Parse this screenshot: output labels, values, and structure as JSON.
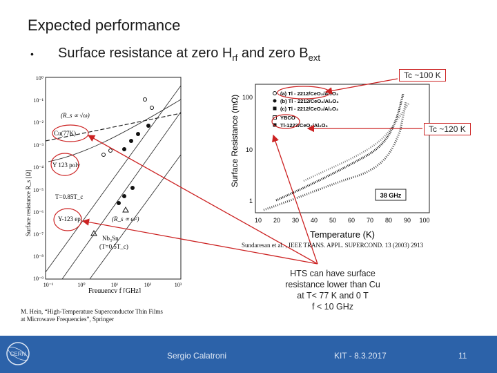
{
  "slide": {
    "title": "Expected performance",
    "bullet": "•",
    "subtitle_main": "Surface resistance at zero H",
    "subtitle_sub1": "rf",
    "subtitle_mid": " and zero B",
    "subtitle_sub2": "ext"
  },
  "left_figure": {
    "ylabel": "Surface resistance R_s [Ω]",
    "xlabel": "Frequency f [GHz]",
    "y_ticks": [
      "10⁰",
      "10⁻¹",
      "10⁻²",
      "10⁻³",
      "10⁻⁴",
      "10⁻⁵",
      "10⁻⁶",
      "10⁻⁷",
      "10⁻⁸",
      "10⁻⁹"
    ],
    "x_ticks": [
      "10⁻¹",
      "10⁰",
      "10¹",
      "10²",
      "10³"
    ],
    "labels": {
      "rs_omega_half": "(R_s ∝ √ω)",
      "cu": "Cu(77K)",
      "ybco_poly": "Y 123 poly",
      "t085": "T=0.85T_c",
      "ybco_epi": "Y-123 epi",
      "rs_omega_sq": "(R_s ∝ ω²)",
      "nb3sn": "Nb₃Sn",
      "nb3sn_t": "(T=0.5T_c)"
    }
  },
  "right_figure": {
    "ylabel": "Surface Resistance (mΩ)",
    "xlabel": "Temperature (K)",
    "y_ticks": [
      "100",
      "10",
      "1"
    ],
    "x_ticks": [
      "10",
      "20",
      "30",
      "40",
      "50",
      "60",
      "70",
      "80",
      "90",
      "100"
    ],
    "legend": [
      "(a) Tl - 2212/CeO₂/Al₂O₃",
      "(b) Tl - 2212/CeO₂/Al₂O₃",
      "(c) Tl - 2212/CeO₂/Al₂O₃",
      "YBCO",
      "Tl-1223/CeO₂/Al₂O₃"
    ],
    "freq_label": "38 GHz"
  },
  "callouts": {
    "tc100": "Tc ~100 K",
    "tc120": "Tc ~120 K"
  },
  "citations": {
    "sundaresan": "Sundaresan et al. , IEEE TRANS. APPL. SUPERCOND. 13 (2003) 2913",
    "hein_line1": "M. Hein, “High-Temperature Superconductor Thin Films",
    "hein_line2": "at Microwave Frequencies”, Springer"
  },
  "note": {
    "line1": "HTS can have surface",
    "line2": "resistance lower than Cu",
    "line3": "at T< 77 K and 0 T",
    "line4": "f < 10 GHz"
  },
  "footer": {
    "author": "Sergio Calatroni",
    "event": "KIT - 8.3.2017",
    "page": "11",
    "logo_text": "CERN"
  },
  "colors": {
    "accent": "#cc2222",
    "footer_bg": "#2c62a9"
  }
}
